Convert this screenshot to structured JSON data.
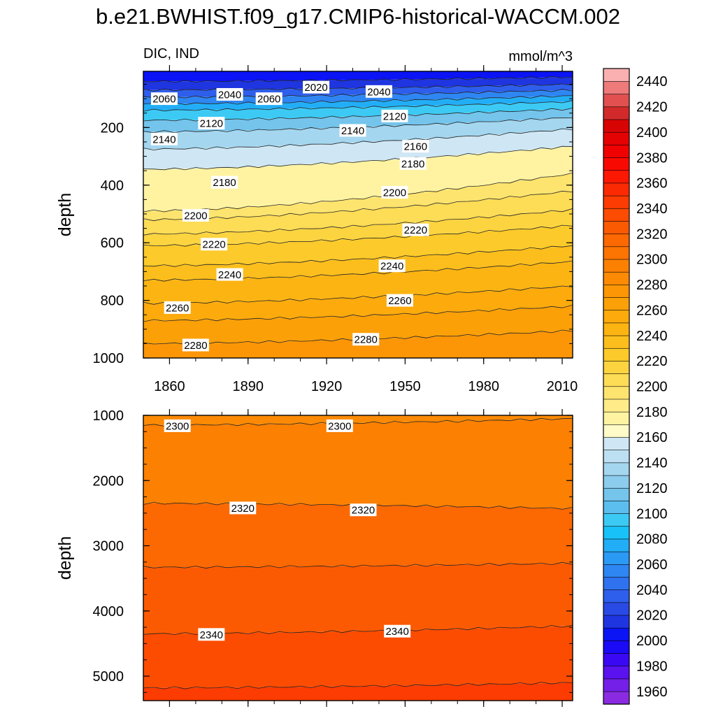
{
  "title": "b.e21.BWHIST.f09_g17.CMIP6-historical-WACCM.002",
  "chart_data": [
    {
      "type": "heatmap",
      "panel": "upper",
      "left_label": "DIC, IND",
      "right_label": "mmol/m^3",
      "xlabel": "",
      "ylabel": "depth",
      "xlim": [
        1850,
        2014
      ],
      "ylim": [
        1000,
        5
      ],
      "y_inverted": true,
      "xticks": [
        1860,
        1890,
        1920,
        1950,
        1980,
        2010
      ],
      "yticks": [
        200,
        400,
        600,
        800,
        1000
      ],
      "contour_interval": 10,
      "isolines": [
        {
          "level": 2020,
          "depth_start": 40,
          "depth_end": 25
        },
        {
          "level": 2040,
          "depth_start": 70,
          "depth_end": 50
        },
        {
          "level": 2060,
          "depth_start": 95,
          "depth_end": 70
        },
        {
          "level": 2080,
          "depth_start": 118,
          "depth_end": 90
        },
        {
          "level": 2100,
          "depth_start": 140,
          "depth_end": 110
        },
        {
          "level": 2120,
          "depth_start": 175,
          "depth_end": 135
        },
        {
          "level": 2140,
          "depth_start": 215,
          "depth_end": 165
        },
        {
          "level": 2160,
          "depth_start": 275,
          "depth_end": 205
        },
        {
          "level": 2180,
          "depth_start": 345,
          "depth_end": 265
        },
        {
          "level": 2200,
          "depth_start": 490,
          "depth_end": 360
        },
        {
          "level": 2210,
          "depth_start": 520,
          "depth_end": 420
        },
        {
          "level": 2220,
          "depth_start": 570,
          "depth_end": 485
        },
        {
          "level": 2230,
          "depth_start": 610,
          "depth_end": 540
        },
        {
          "level": 2240,
          "depth_start": 680,
          "depth_end": 610
        },
        {
          "level": 2250,
          "depth_start": 730,
          "depth_end": 665
        },
        {
          "level": 2260,
          "depth_start": 810,
          "depth_end": 750
        },
        {
          "level": 2270,
          "depth_start": 870,
          "depth_end": 820
        },
        {
          "level": 2280,
          "depth_start": 950,
          "depth_end": 905
        }
      ],
      "contour_labels": [
        {
          "text": "2060",
          "year": 1858,
          "depth": 100
        },
        {
          "text": "2040",
          "year": 1883,
          "depth": 85
        },
        {
          "text": "2060",
          "year": 1898,
          "depth": 100
        },
        {
          "text": "2020",
          "year": 1916,
          "depth": 60
        },
        {
          "text": "2040",
          "year": 1940,
          "depth": 75
        },
        {
          "text": "2120",
          "year": 1876,
          "depth": 185
        },
        {
          "text": "2120",
          "year": 1946,
          "depth": 160
        },
        {
          "text": "2140",
          "year": 1858,
          "depth": 240
        },
        {
          "text": "2140",
          "year": 1930,
          "depth": 210
        },
        {
          "text": "2160",
          "year": 1954,
          "depth": 265
        },
        {
          "text": "2180",
          "year": 1953,
          "depth": 325
        },
        {
          "text": "2180",
          "year": 1881,
          "depth": 390
        },
        {
          "text": "2200",
          "year": 1946,
          "depth": 425
        },
        {
          "text": "2200",
          "year": 1870,
          "depth": 505
        },
        {
          "text": "2220",
          "year": 1954,
          "depth": 555
        },
        {
          "text": "2220",
          "year": 1877,
          "depth": 605
        },
        {
          "text": "2240",
          "year": 1883,
          "depth": 710
        },
        {
          "text": "2240",
          "year": 1945,
          "depth": 680
        },
        {
          "text": "2260",
          "year": 1863,
          "depth": 825
        },
        {
          "text": "2260",
          "year": 1948,
          "depth": 800
        },
        {
          "text": "2280",
          "year": 1870,
          "depth": 955
        },
        {
          "text": "2280",
          "year": 1935,
          "depth": 935
        }
      ]
    },
    {
      "type": "heatmap",
      "panel": "lower",
      "xlabel": "",
      "ylabel": "depth",
      "xlim": [
        1850,
        2014
      ],
      "ylim": [
        5375,
        1000
      ],
      "y_inverted": true,
      "xticks": [
        1860,
        1890,
        1920,
        1950,
        1980,
        2010
      ],
      "yticks": [
        1000,
        2000,
        3000,
        4000,
        5000
      ],
      "isolines": [
        {
          "level": 2300,
          "depth_start": 1150,
          "depth_end": 1050
        },
        {
          "level": 2320,
          "depth_start": 2350,
          "depth_end": 2430
        },
        {
          "level": 2330,
          "depth_start": 3330,
          "depth_end": 3270
        },
        {
          "level": 2340,
          "depth_start": 4350,
          "depth_end": 4230
        },
        {
          "level": 2350,
          "depth_start": 5180,
          "depth_end": 5100
        }
      ],
      "contour_labels": [
        {
          "text": "2300",
          "year": 1863,
          "depth": 1160
        },
        {
          "text": "2300",
          "year": 1925,
          "depth": 1160
        },
        {
          "text": "2320",
          "year": 1888,
          "depth": 2420
        },
        {
          "text": "2320",
          "year": 1934,
          "depth": 2450
        },
        {
          "text": "2340",
          "year": 1876,
          "depth": 4360
        },
        {
          "text": "2340",
          "year": 1947,
          "depth": 4310
        }
      ]
    }
  ],
  "colorbar": {
    "levels": [
      1960,
      1970,
      1980,
      1990,
      2000,
      2010,
      2020,
      2030,
      2040,
      2050,
      2060,
      2070,
      2080,
      2090,
      2100,
      2110,
      2120,
      2130,
      2140,
      2150,
      2160,
      2170,
      2180,
      2190,
      2200,
      2210,
      2220,
      2230,
      2240,
      2250,
      2260,
      2270,
      2280,
      2290,
      2300,
      2310,
      2320,
      2330,
      2340,
      2350,
      2360,
      2370,
      2380,
      2390,
      2400,
      2410,
      2420,
      2430,
      2440,
      2450
    ],
    "tick_labels": [
      "1960",
      "1980",
      "2000",
      "2020",
      "2040",
      "2060",
      "2080",
      "2100",
      "2120",
      "2140",
      "2160",
      "2180",
      "2200",
      "2220",
      "2240",
      "2260",
      "2280",
      "2300",
      "2320",
      "2340",
      "2360",
      "2380",
      "2400",
      "2420",
      "2440"
    ],
    "colors": [
      "#8a2be2",
      "#7420e8",
      "#5a12ee",
      "#3a08f2",
      "#1a0af5",
      "#0a14f5",
      "#1e35e0",
      "#2a4ae6",
      "#2e5eec",
      "#2f72f0",
      "#2e86f2",
      "#2a9af4",
      "#22aef6",
      "#18c2f8",
      "#3ccaf4",
      "#5cbeef",
      "#74c4ec",
      "#8cccec",
      "#a4d6ef",
      "#bcdff2",
      "#cfe7f4",
      "#fffbc8",
      "#fff3a2",
      "#ffec88",
      "#fde46e",
      "#fddc56",
      "#fcd440",
      "#fcca2a",
      "#fcbe1c",
      "#fcb412",
      "#fcaa0c",
      "#fca008",
      "#fc9606",
      "#fc8a04",
      "#fc8002",
      "#fc7402",
      "#fc6802",
      "#fc5a02",
      "#fc4c02",
      "#fc3c02",
      "#fc2a02",
      "#fc1802",
      "#f80a02",
      "#f00202",
      "#e40202",
      "#d80404",
      "#d22a2a",
      "#e25050",
      "#ee7a7a",
      "#fab0b0"
    ]
  }
}
